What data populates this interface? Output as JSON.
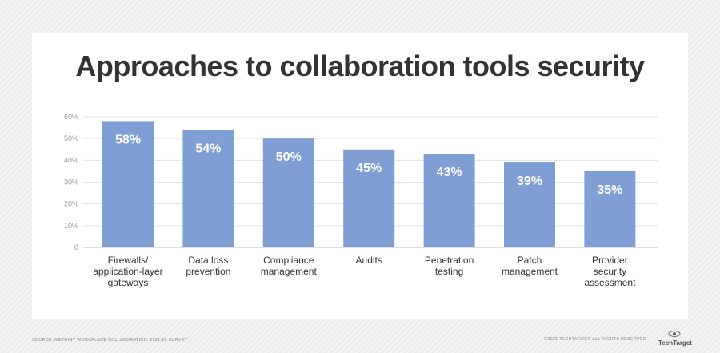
{
  "chart_data": {
    "type": "bar",
    "title": "Approaches to collaboration tools security",
    "categories": [
      [
        "Firewalls/",
        "application-layer",
        "gateways"
      ],
      [
        "Data loss",
        "prevention"
      ],
      [
        "Compliance",
        "management"
      ],
      [
        "Audits"
      ],
      [
        "Penetration",
        "testing"
      ],
      [
        "Patch",
        "management"
      ],
      [
        "Provider",
        "security",
        "assessment"
      ]
    ],
    "values": [
      58,
      54,
      50,
      45,
      43,
      39,
      35
    ],
    "data_labels": [
      "58%",
      "54%",
      "50%",
      "45%",
      "43%",
      "39%",
      "35%"
    ],
    "yticks": [
      "0",
      "10%",
      "20%",
      "30%",
      "40%",
      "50%",
      "60%"
    ],
    "ylim": [
      0,
      60
    ],
    "grid": true,
    "bar_color": "#7f9fd4"
  },
  "footer": {
    "source": "SOURCE: METRIGY WORKPLACE COLLABORATION: 2021-22 SURVEY",
    "copyright": "©2021 TECHTARGET. ALL RIGHTS RESERVED",
    "logo": "TechTarget"
  }
}
